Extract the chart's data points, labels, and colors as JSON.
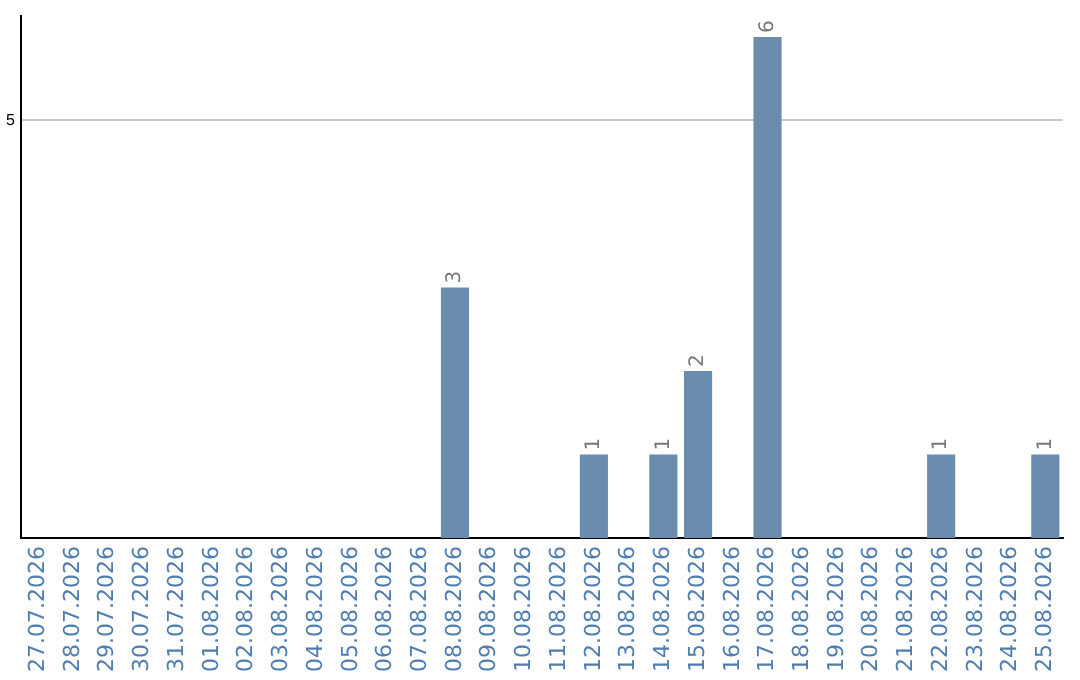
{
  "chart_data": {
    "type": "bar",
    "categories": [
      "27.07.2026",
      "28.07.2026",
      "29.07.2026",
      "30.07.2026",
      "31.07.2026",
      "01.08.2026",
      "02.08.2026",
      "03.08.2026",
      "04.08.2026",
      "05.08.2026",
      "06.08.2026",
      "07.08.2026",
      "08.08.2026",
      "09.08.2026",
      "10.08.2026",
      "11.08.2026",
      "12.08.2026",
      "13.08.2026",
      "14.08.2026",
      "15.08.2026",
      "16.08.2026",
      "17.08.2026",
      "18.08.2026",
      "19.08.2026",
      "20.08.2026",
      "21.08.2026",
      "22.08.2026",
      "23.08.2026",
      "24.08.2026",
      "25.08.2026"
    ],
    "values": [
      null,
      null,
      null,
      null,
      null,
      null,
      null,
      null,
      null,
      null,
      null,
      null,
      3,
      null,
      null,
      null,
      1,
      null,
      1,
      2,
      null,
      6,
      null,
      null,
      null,
      null,
      1,
      null,
      null,
      1
    ],
    "value_labels": [
      null,
      null,
      null,
      null,
      null,
      null,
      null,
      null,
      null,
      null,
      null,
      null,
      "3",
      null,
      null,
      null,
      "1",
      null,
      "1",
      "2",
      null,
      "6",
      null,
      null,
      null,
      null,
      "1",
      null,
      null,
      "1"
    ],
    "color": "#6a8caf",
    "ylim": [
      0,
      6.25
    ],
    "yticks": [
      5
    ],
    "grid": "y",
    "legend": false
  }
}
